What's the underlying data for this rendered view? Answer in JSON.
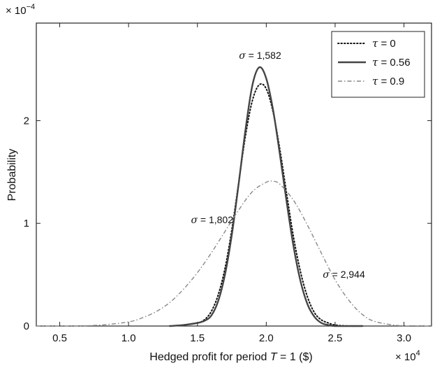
{
  "chart_data": {
    "type": "line",
    "title": "",
    "xlabel_prefix": "Hedged profit for period ",
    "xlabel_var": "T",
    "xlabel_suffix": " = 1 ($)",
    "ylabel": "Probability",
    "x_multiplier": "× 10",
    "x_multiplier_exp": "4",
    "y_multiplier": "× 10",
    "y_multiplier_exp": "−4",
    "xlim": [
      0.33,
      3.2
    ],
    "ylim": [
      0,
      2.95
    ],
    "xticks": [
      0.5,
      1.0,
      1.5,
      2.0,
      2.5,
      3.0
    ],
    "xtick_labels": [
      "0.5",
      "1.0",
      "1.5",
      "2.0",
      "2.5",
      "3.0"
    ],
    "yticks": [
      0,
      1,
      2
    ],
    "ytick_labels": [
      "0",
      "1",
      "2"
    ],
    "grid": false,
    "legend_position": "top-right",
    "series": [
      {
        "name_symbol": "τ",
        "name_value": " = 0",
        "style": "dotted",
        "color": "#111111",
        "x": [
          1.3,
          1.4,
          1.5,
          1.55,
          1.6,
          1.65,
          1.7,
          1.75,
          1.8,
          1.85,
          1.9,
          1.95,
          2.0,
          2.05,
          2.1,
          2.15,
          2.2,
          2.25,
          2.3,
          2.35,
          2.4,
          2.45,
          2.5,
          2.6,
          2.7
        ],
        "y": [
          0.0,
          0.01,
          0.03,
          0.06,
          0.14,
          0.3,
          0.56,
          0.94,
          1.4,
          1.86,
          2.2,
          2.35,
          2.31,
          2.08,
          1.71,
          1.27,
          0.85,
          0.52,
          0.28,
          0.13,
          0.06,
          0.03,
          0.01,
          0.0,
          0.0
        ]
      },
      {
        "name_symbol": "τ",
        "name_value": " = 0.56",
        "style": "solid",
        "color": "#444444",
        "x": [
          1.3,
          1.4,
          1.5,
          1.55,
          1.6,
          1.65,
          1.7,
          1.75,
          1.8,
          1.85,
          1.9,
          1.95,
          2.0,
          2.05,
          2.1,
          2.15,
          2.2,
          2.25,
          2.3,
          2.35,
          2.4,
          2.45,
          2.5,
          2.6,
          2.7
        ],
        "y": [
          0.0,
          0.01,
          0.03,
          0.05,
          0.1,
          0.24,
          0.5,
          0.89,
          1.39,
          1.92,
          2.35,
          2.52,
          2.41,
          2.1,
          1.66,
          1.19,
          0.76,
          0.43,
          0.21,
          0.09,
          0.03,
          0.01,
          0.0,
          0.0,
          0.0
        ]
      },
      {
        "name_symbol": "τ",
        "name_value": " = 0.9",
        "style": "dashdot",
        "color": "#888888",
        "x": [
          0.33,
          0.6,
          0.8,
          1.0,
          1.1,
          1.2,
          1.3,
          1.4,
          1.5,
          1.6,
          1.7,
          1.8,
          1.9,
          2.0,
          2.05,
          2.1,
          2.2,
          2.3,
          2.4,
          2.5,
          2.6,
          2.7,
          2.8,
          3.0,
          3.2
        ],
        "y": [
          0.0,
          0.0,
          0.01,
          0.04,
          0.08,
          0.14,
          0.23,
          0.36,
          0.52,
          0.71,
          0.92,
          1.13,
          1.31,
          1.4,
          1.41,
          1.38,
          1.22,
          0.98,
          0.71,
          0.45,
          0.25,
          0.11,
          0.04,
          0.0,
          0.0
        ]
      }
    ],
    "annotations": [
      {
        "symbol": "σ",
        "text": " = 1,582",
        "x": 1.955,
        "y": 2.52,
        "anchor": "middle",
        "dy": -12
      },
      {
        "symbol": "σ",
        "text": " = 1,802",
        "x": 1.76,
        "y": 1.03,
        "anchor": "end",
        "dy": 4
      },
      {
        "symbol": "σ",
        "text": " = 2,944",
        "x": 2.41,
        "y": 0.47,
        "anchor": "start",
        "dy": 0
      }
    ]
  }
}
